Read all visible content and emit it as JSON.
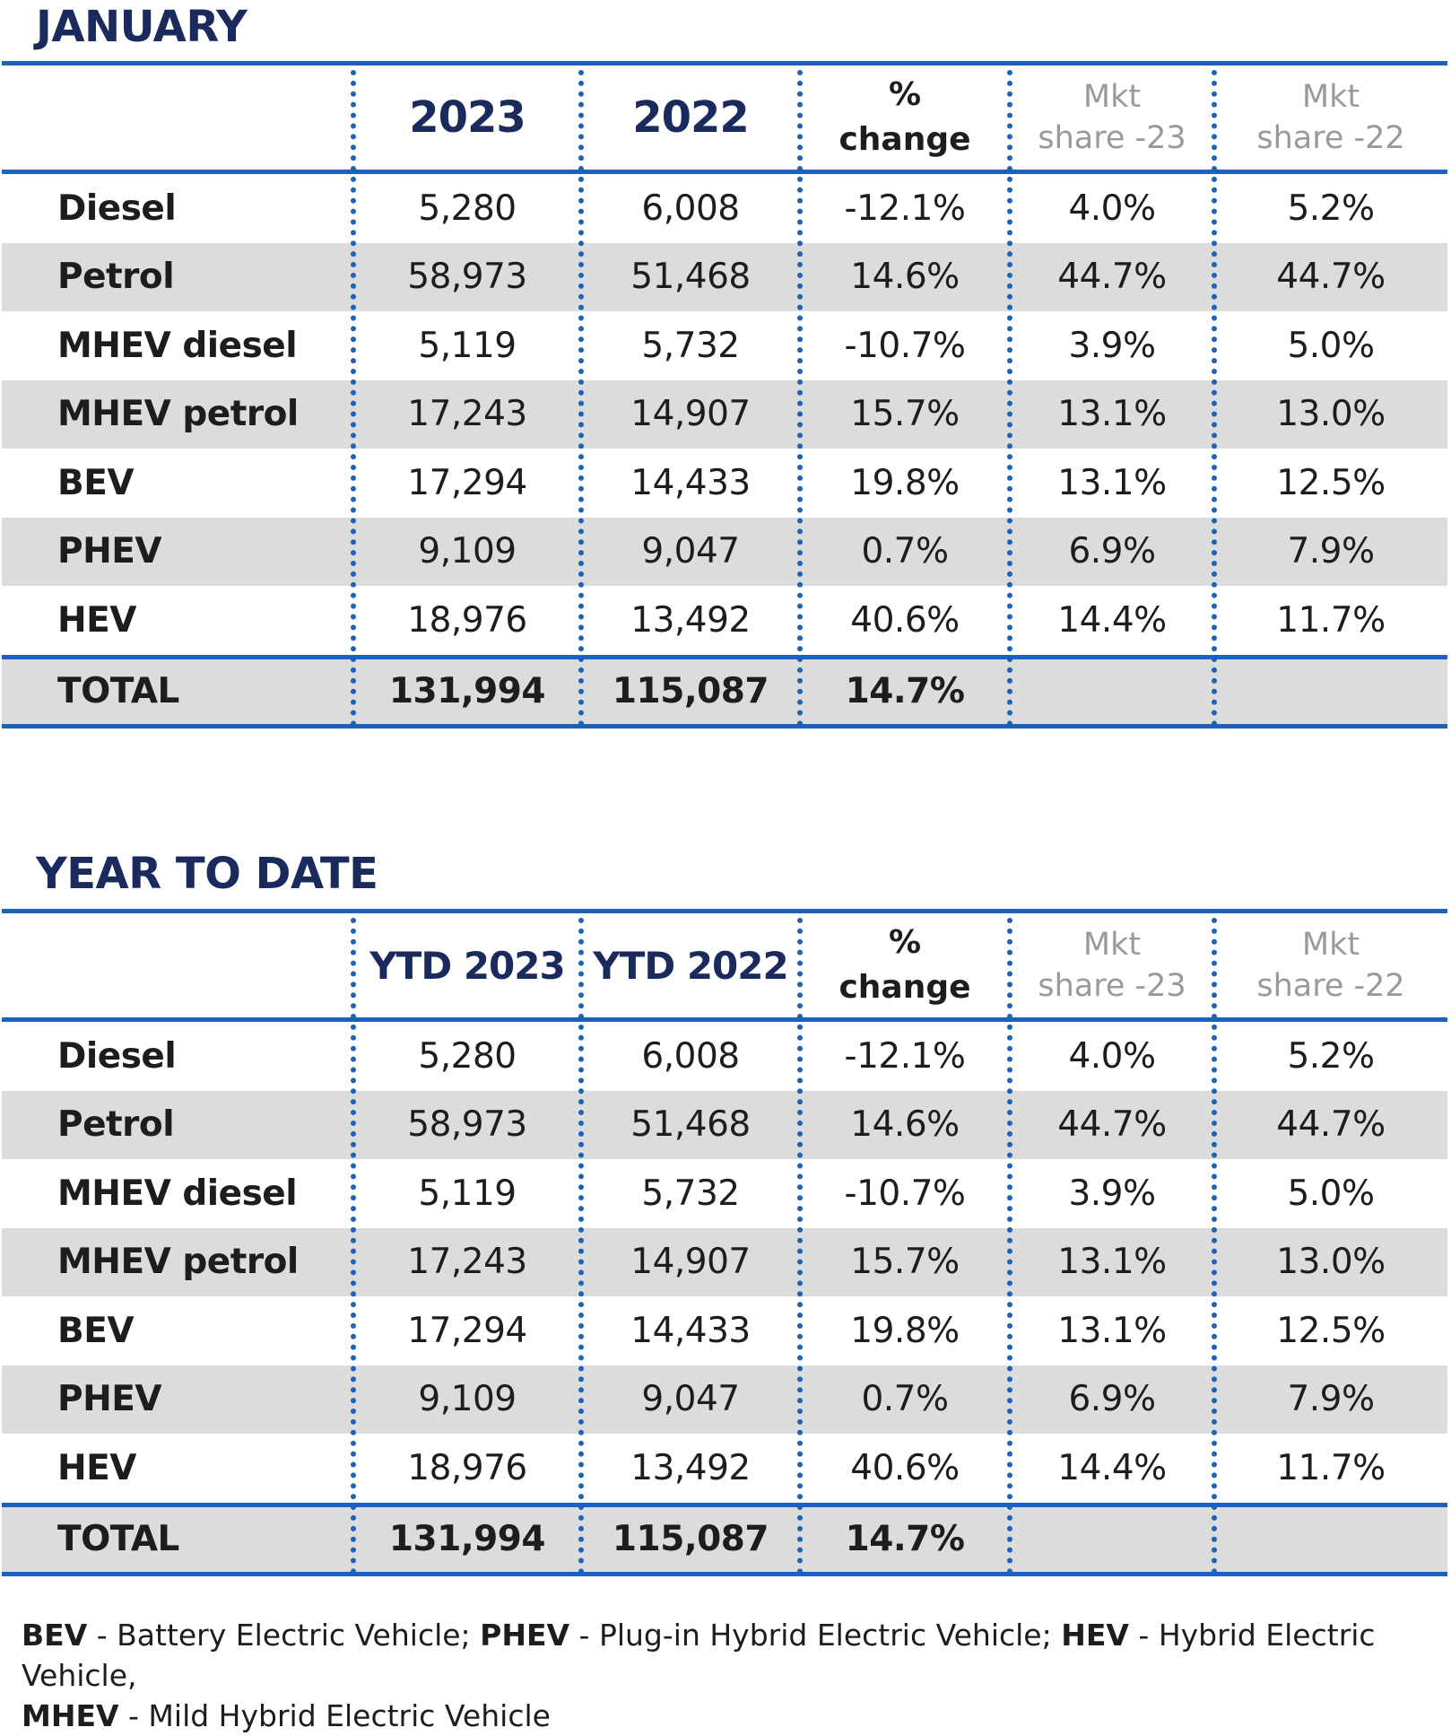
{
  "january": {
    "title": "JANUARY",
    "headers": [
      "2023",
      "2022",
      "%\nchange",
      "Mkt\nshare -23",
      "Mkt\nshare -22"
    ],
    "rows": [
      {
        "label": "Diesel",
        "v": [
          "5,280",
          "6,008",
          "-12.1%",
          "4.0%",
          "5.2%"
        ]
      },
      {
        "label": "Petrol",
        "v": [
          "58,973",
          "51,468",
          "14.6%",
          "44.7%",
          "44.7%"
        ]
      },
      {
        "label": "MHEV diesel",
        "v": [
          "5,119",
          "5,732",
          "-10.7%",
          "3.9%",
          "5.0%"
        ]
      },
      {
        "label": "MHEV petrol",
        "v": [
          "17,243",
          "14,907",
          "15.7%",
          "13.1%",
          "13.0%"
        ]
      },
      {
        "label": "BEV",
        "v": [
          "17,294",
          "14,433",
          "19.8%",
          "13.1%",
          "12.5%"
        ]
      },
      {
        "label": "PHEV",
        "v": [
          "9,109",
          "9,047",
          "0.7%",
          "6.9%",
          "7.9%"
        ]
      },
      {
        "label": "HEV",
        "v": [
          "18,976",
          "13,492",
          "40.6%",
          "14.4%",
          "11.7%"
        ]
      }
    ],
    "total": {
      "label": "TOTAL",
      "v": [
        "131,994",
        "115,087",
        "14.7%",
        "",
        ""
      ]
    }
  },
  "ytd": {
    "title": "YEAR TO DATE",
    "headers": [
      "YTD 2023",
      "YTD 2022",
      "%\nchange",
      "Mkt\nshare -23",
      "Mkt\nshare -22"
    ],
    "rows": [
      {
        "label": "Diesel",
        "v": [
          "5,280",
          "6,008",
          "-12.1%",
          "4.0%",
          "5.2%"
        ]
      },
      {
        "label": "Petrol",
        "v": [
          "58,973",
          "51,468",
          "14.6%",
          "44.7%",
          "44.7%"
        ]
      },
      {
        "label": "MHEV diesel",
        "v": [
          "5,119",
          "5,732",
          "-10.7%",
          "3.9%",
          "5.0%"
        ]
      },
      {
        "label": "MHEV petrol",
        "v": [
          "17,243",
          "14,907",
          "15.7%",
          "13.1%",
          "13.0%"
        ]
      },
      {
        "label": "BEV",
        "v": [
          "17,294",
          "14,433",
          "19.8%",
          "13.1%",
          "12.5%"
        ]
      },
      {
        "label": "PHEV",
        "v": [
          "9,109",
          "9,047",
          "0.7%",
          "6.9%",
          "7.9%"
        ]
      },
      {
        "label": "HEV",
        "v": [
          "18,976",
          "13,492",
          "40.6%",
          "14.4%",
          "11.7%"
        ]
      }
    ],
    "total": {
      "label": "TOTAL",
      "v": [
        "131,994",
        "115,087",
        "14.7%",
        "",
        ""
      ]
    }
  },
  "footnote": {
    "bev_abbr": "BEV",
    "bev_text": " - Battery Electric Vehicle; ",
    "phev_abbr": "PHEV",
    "phev_text": " - Plug-in Hybrid Electric Vehicle; ",
    "hev_abbr": "HEV",
    "hev_text": " - Hybrid Electric Vehicle,",
    "mhev_abbr": "MHEV",
    "mhev_text": " - Mild Hybrid Electric Vehicle"
  },
  "colors": {
    "accent": "#1d62b8",
    "title": "#1b2a5c",
    "shade": "#dcdcdc",
    "muted": "#9a9a9a"
  }
}
